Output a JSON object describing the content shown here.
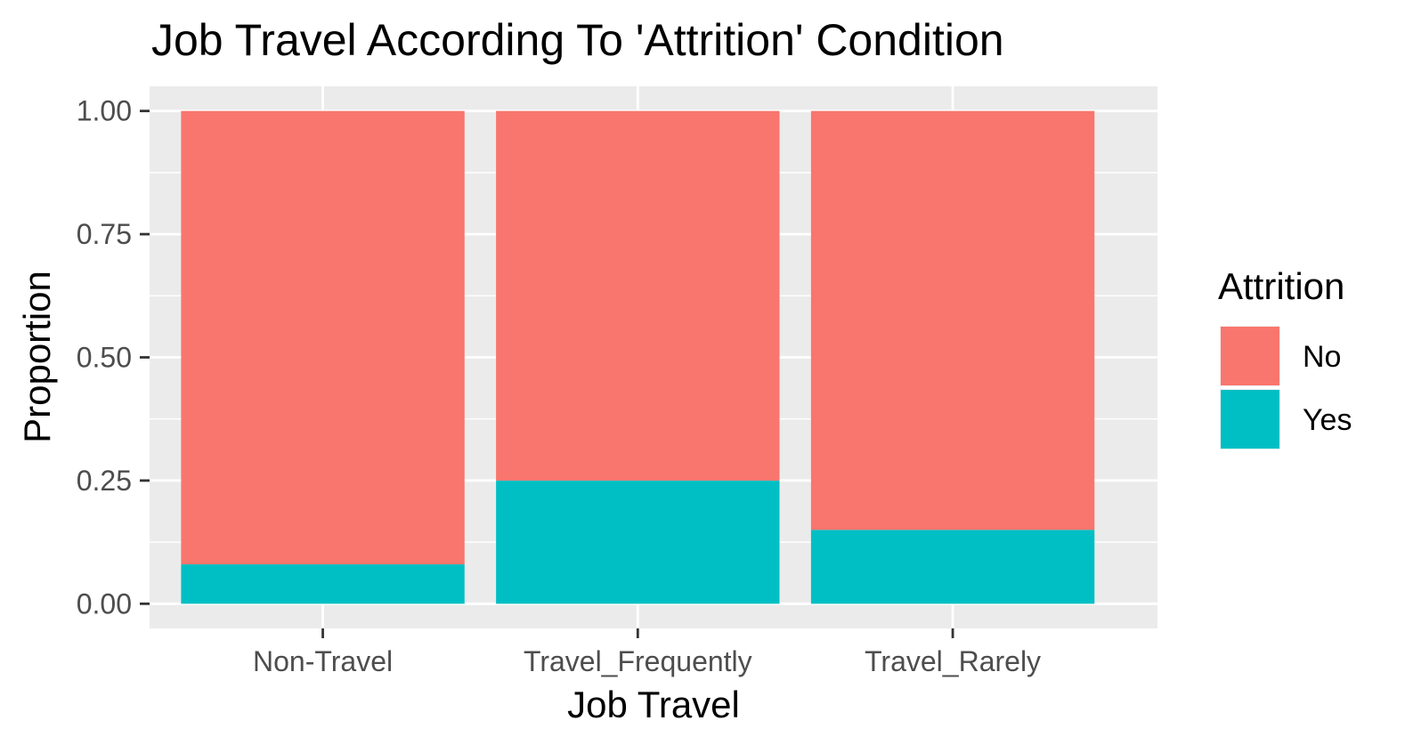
{
  "chart_data": {
    "type": "bar",
    "stacked": true,
    "title": "Job Travel According To 'Attrition' Condition",
    "xlabel": "Job Travel",
    "ylabel": "Proportion",
    "categories": [
      "Non-Travel",
      "Travel_Frequently",
      "Travel_Rarely"
    ],
    "series": [
      {
        "name": "No",
        "color": "#F8766D",
        "values": [
          0.92,
          0.75,
          0.85
        ]
      },
      {
        "name": "Yes",
        "color": "#00BFC4",
        "values": [
          0.08,
          0.25,
          0.15
        ]
      }
    ],
    "ylim": [
      -0.05,
      1.05
    ],
    "yticks": [
      0,
      0.25,
      0.5,
      0.75,
      1
    ],
    "ytick_labels": [
      "0.00",
      "0.25",
      "0.50",
      "0.75",
      "1.00"
    ],
    "grid": true,
    "legend": {
      "title": "Attrition",
      "position": "right"
    },
    "panel_color": "#EBEBEB",
    "grid_color": "#FFFFFF"
  }
}
